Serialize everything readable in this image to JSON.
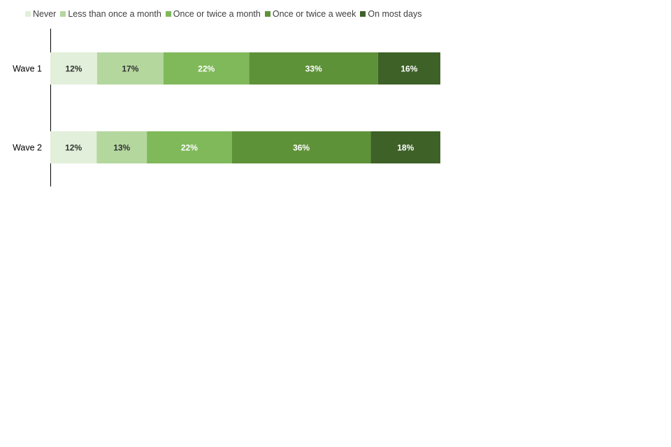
{
  "chart_data": {
    "type": "bar",
    "orientation": "horizontal",
    "stacked": true,
    "categories": [
      "Wave 1",
      "Wave 2"
    ],
    "series": [
      {
        "name": "Never",
        "values": [
          12,
          12
        ],
        "color": "#E2EFDA",
        "label_color": "#333333"
      },
      {
        "name": "Less than once a month",
        "values": [
          17,
          13
        ],
        "color": "#B4D79E",
        "label_color": "#333333"
      },
      {
        "name": "Once or twice a month",
        "values": [
          22,
          22
        ],
        "color": "#7FB95A",
        "label_color": "#FFFFFF"
      },
      {
        "name": "Once or twice a week",
        "values": [
          33,
          36
        ],
        "color": "#5E9239",
        "label_color": "#FFFFFF"
      },
      {
        "name": "On most days",
        "values": [
          16,
          18
        ],
        "color": "#3E6128",
        "label_color": "#FFFFFF"
      }
    ],
    "value_suffix": "%",
    "legend_position": "top-left",
    "grid": false,
    "xlim": [
      0,
      100
    ]
  }
}
